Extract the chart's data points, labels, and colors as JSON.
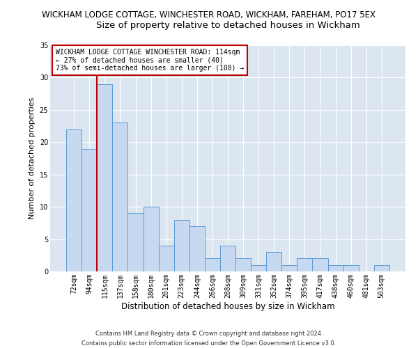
{
  "title1": "WICKHAM LODGE COTTAGE, WINCHESTER ROAD, WICKHAM, FAREHAM, PO17 5EX",
  "title2": "Size of property relative to detached houses in Wickham",
  "xlabel": "Distribution of detached houses by size in Wickham",
  "ylabel": "Number of detached properties",
  "categories": [
    "72sqm",
    "94sqm",
    "115sqm",
    "137sqm",
    "158sqm",
    "180sqm",
    "201sqm",
    "223sqm",
    "244sqm",
    "266sqm",
    "288sqm",
    "309sqm",
    "331sqm",
    "352sqm",
    "374sqm",
    "395sqm",
    "417sqm",
    "438sqm",
    "460sqm",
    "481sqm",
    "503sqm"
  ],
  "values": [
    22,
    19,
    29,
    23,
    9,
    10,
    4,
    8,
    7,
    2,
    4,
    2,
    1,
    3,
    1,
    2,
    2,
    1,
    1,
    0,
    1
  ],
  "bar_color": "#c6d9f1",
  "bar_edge_color": "#5b9bd5",
  "annotation_text_line1": "WICKHAM LODGE COTTAGE WINCHESTER ROAD: 114sqm",
  "annotation_text_line2": "← 27% of detached houses are smaller (40)",
  "annotation_text_line3": "73% of semi-detached houses are larger (108) →",
  "annotation_box_color": "#ffffff",
  "annotation_box_edge_color": "#c00000",
  "vline_color": "#c00000",
  "ylim": [
    0,
    35
  ],
  "yticks": [
    0,
    5,
    10,
    15,
    20,
    25,
    30,
    35
  ],
  "footnote1": "Contains HM Land Registry data © Crown copyright and database right 2024.",
  "footnote2": "Contains public sector information licensed under the Open Government Licence v3.0.",
  "plot_bg_color": "#dce6f1",
  "title1_fontsize": 8.5,
  "title2_fontsize": 9.5,
  "annotation_fontsize": 7.0,
  "tick_fontsize": 7.0,
  "ylabel_fontsize": 8,
  "xlabel_fontsize": 8.5,
  "footnote_fontsize": 6.0
}
